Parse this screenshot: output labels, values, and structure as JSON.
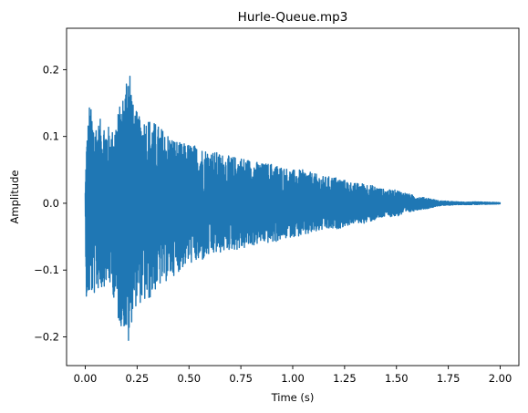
{
  "chart_data": {
    "type": "line",
    "title": "Hurle-Queue.mp3",
    "xlabel": "Time (s)",
    "ylabel": "Amplitude",
    "xlim": [
      -0.09,
      2.09
    ],
    "ylim": [
      -0.243,
      0.262
    ],
    "x_ticks": [
      0.0,
      0.25,
      0.5,
      0.75,
      1.0,
      1.25,
      1.5,
      1.75,
      2.0
    ],
    "x_tick_labels": [
      "0.00",
      "0.25",
      "0.50",
      "0.75",
      "1.00",
      "1.25",
      "1.50",
      "1.75",
      "2.00"
    ],
    "y_ticks": [
      -0.2,
      -0.1,
      0.0,
      0.1,
      0.2
    ],
    "y_tick_labels": [
      "−0.2",
      "−0.1",
      "0.0",
      "0.1",
      "0.2"
    ],
    "grid": false,
    "legend": "none",
    "series": [
      {
        "color": "#1f77b4",
        "envelope": {
          "x": [
            0.0,
            0.005,
            0.02,
            0.04,
            0.06,
            0.08,
            0.1,
            0.13,
            0.16,
            0.19,
            0.21,
            0.23,
            0.26,
            0.3,
            0.34,
            0.38,
            0.42,
            0.46,
            0.5,
            0.55,
            0.6,
            0.65,
            0.7,
            0.75,
            0.8,
            0.85,
            0.9,
            0.95,
            1.0,
            1.05,
            1.1,
            1.15,
            1.2,
            1.25,
            1.3,
            1.35,
            1.4,
            1.45,
            1.5,
            1.55,
            1.6,
            1.65,
            1.7,
            1.75,
            1.8,
            1.9,
            2.0
          ],
          "upper": [
            0.02,
            0.09,
            0.15,
            0.13,
            0.12,
            0.13,
            0.12,
            0.11,
            0.14,
            0.17,
            0.24,
            0.15,
            0.13,
            0.13,
            0.12,
            0.11,
            0.1,
            0.09,
            0.09,
            0.085,
            0.08,
            0.075,
            0.07,
            0.07,
            0.065,
            0.06,
            0.06,
            0.055,
            0.05,
            0.05,
            0.045,
            0.04,
            0.04,
            0.035,
            0.03,
            0.03,
            0.025,
            0.02,
            0.02,
            0.015,
            0.01,
            0.008,
            0.004,
            0.003,
            0.002,
            0.002,
            0.001
          ],
          "lower": [
            -0.02,
            -0.15,
            -0.14,
            -0.14,
            -0.13,
            -0.13,
            -0.12,
            -0.13,
            -0.18,
            -0.19,
            -0.22,
            -0.16,
            -0.15,
            -0.15,
            -0.13,
            -0.12,
            -0.11,
            -0.1,
            -0.09,
            -0.09,
            -0.08,
            -0.075,
            -0.07,
            -0.07,
            -0.065,
            -0.06,
            -0.06,
            -0.055,
            -0.05,
            -0.05,
            -0.045,
            -0.04,
            -0.04,
            -0.035,
            -0.03,
            -0.03,
            -0.025,
            -0.02,
            -0.02,
            -0.015,
            -0.01,
            -0.008,
            -0.004,
            -0.003,
            -0.002,
            -0.002,
            -0.001
          ]
        }
      }
    ]
  }
}
